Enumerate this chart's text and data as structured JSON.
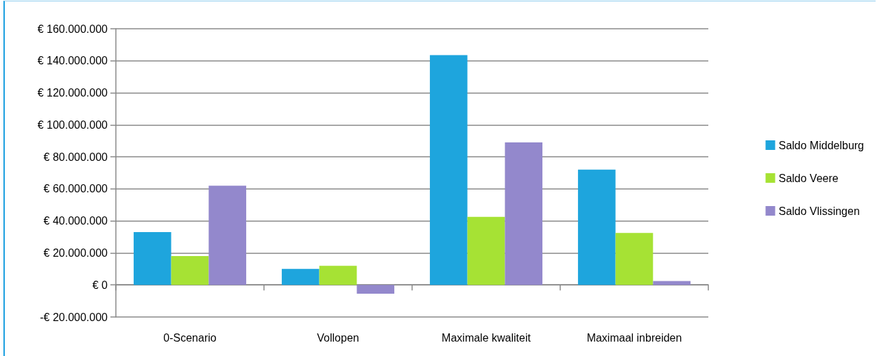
{
  "chart_data": {
    "type": "bar",
    "categories": [
      "0-Scenario",
      "Vollopen",
      "Maximale kwaliteit",
      "Maximaal inbreiden"
    ],
    "series": [
      {
        "name": "Saldo Middelburg",
        "color": "#1ea5dd",
        "values": [
          33000000,
          10000000,
          143500000,
          72000000
        ]
      },
      {
        "name": "Saldo Veere",
        "color": "#a6e234",
        "values": [
          18000000,
          12000000,
          42500000,
          32500000
        ]
      },
      {
        "name": "Saldo Vlissingen",
        "color": "#9388cc",
        "values": [
          62000000,
          -5500000,
          89000000,
          2500000
        ]
      }
    ],
    "ylim": [
      -20000000,
      160000000
    ],
    "yticks": [
      {
        "value": -20000000,
        "label": "-€ 20.000.000"
      },
      {
        "value": 0,
        "label": "€ 0"
      },
      {
        "value": 20000000,
        "label": "€ 20.000.000"
      },
      {
        "value": 40000000,
        "label": "€ 40.000.000"
      },
      {
        "value": 60000000,
        "label": "€ 60.000.000"
      },
      {
        "value": 80000000,
        "label": "€ 80.000.000"
      },
      {
        "value": 100000000,
        "label": "€ 100.000.000"
      },
      {
        "value": 120000000,
        "label": "€ 120.000.000"
      },
      {
        "value": 140000000,
        "label": "€ 140.000.000"
      },
      {
        "value": 160000000,
        "label": "€ 160.000.000"
      }
    ],
    "grid": "y",
    "legend": "right"
  }
}
